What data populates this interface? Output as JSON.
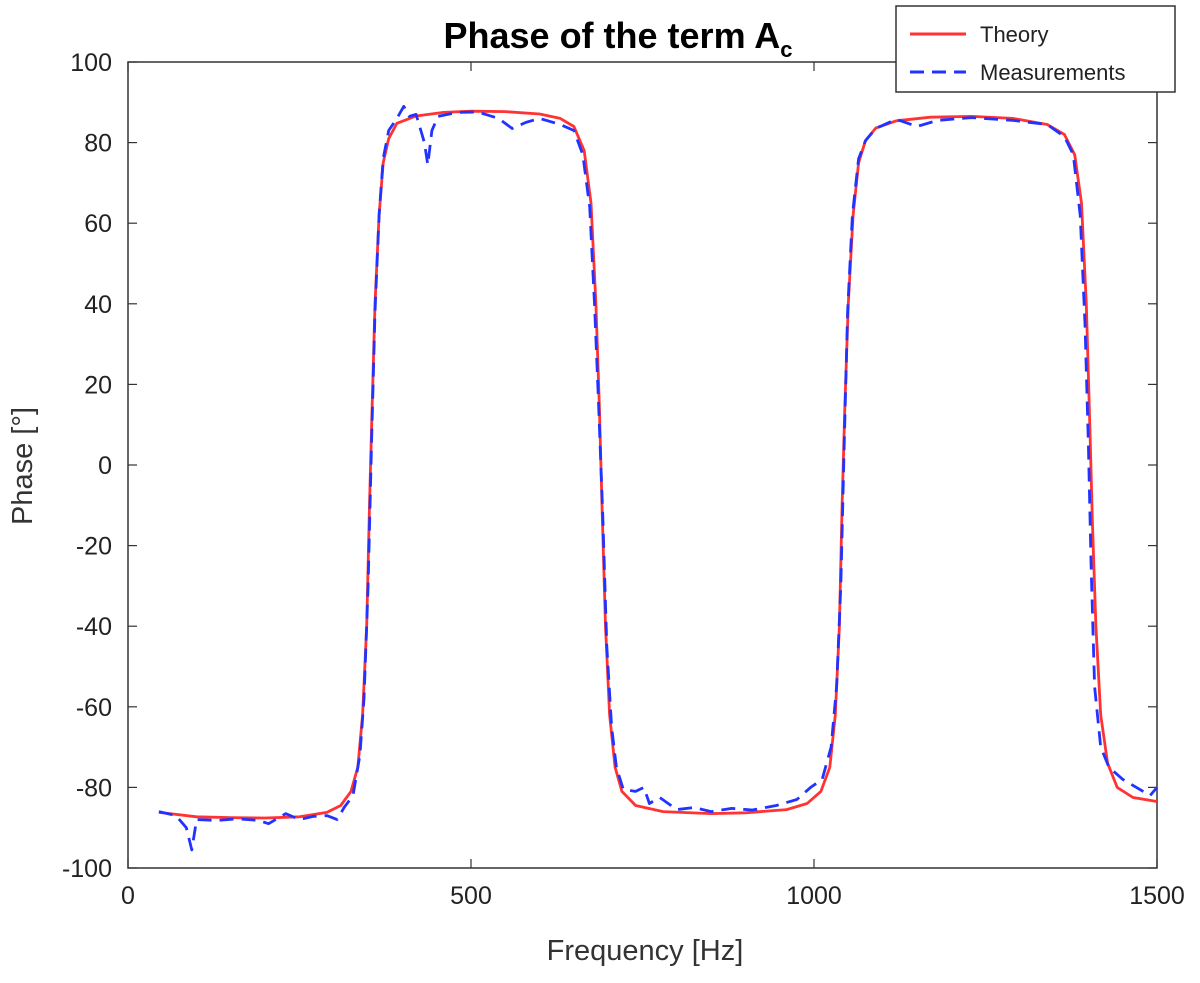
{
  "chart_data": {
    "type": "line",
    "title": "Phase of the term A",
    "title_subscript": "c",
    "xlabel": "Frequency [Hz]",
    "ylabel": "Phase [°]",
    "xlim": [
      0,
      1500
    ],
    "ylim": [
      -100,
      100
    ],
    "xticks": [
      0,
      500,
      1000,
      1500
    ],
    "yticks": [
      -100,
      -80,
      -60,
      -40,
      -20,
      0,
      20,
      40,
      60,
      80,
      100
    ],
    "grid": false,
    "legend_position": "top-right",
    "series": [
      {
        "name": "Theory",
        "color": "#ff3333",
        "style": "solid",
        "points": [
          [
            45,
            -86.2
          ],
          [
            100,
            -87.3
          ],
          [
            150,
            -87.5
          ],
          [
            200,
            -87.6
          ],
          [
            250,
            -87.3
          ],
          [
            290,
            -86.2
          ],
          [
            310,
            -84.5
          ],
          [
            325,
            -81
          ],
          [
            335,
            -75
          ],
          [
            342,
            -62
          ],
          [
            348,
            -40
          ],
          [
            352,
            -10
          ],
          [
            356,
            15
          ],
          [
            360,
            40
          ],
          [
            366,
            62
          ],
          [
            372,
            75
          ],
          [
            380,
            81
          ],
          [
            392,
            84.8
          ],
          [
            420,
            86.6
          ],
          [
            460,
            87.5
          ],
          [
            500,
            87.8
          ],
          [
            550,
            87.7
          ],
          [
            600,
            87.1
          ],
          [
            630,
            86
          ],
          [
            650,
            84
          ],
          [
            665,
            78
          ],
          [
            675,
            65
          ],
          [
            682,
            40
          ],
          [
            687,
            15
          ],
          [
            691,
            -10
          ],
          [
            696,
            -40
          ],
          [
            702,
            -62
          ],
          [
            710,
            -75
          ],
          [
            720,
            -81
          ],
          [
            740,
            -84.5
          ],
          [
            780,
            -86
          ],
          [
            850,
            -86.5
          ],
          [
            900,
            -86.3
          ],
          [
            960,
            -85.5
          ],
          [
            990,
            -84
          ],
          [
            1010,
            -81
          ],
          [
            1023,
            -75
          ],
          [
            1031,
            -62
          ],
          [
            1037,
            -40
          ],
          [
            1041,
            -10
          ],
          [
            1045,
            15
          ],
          [
            1050,
            40
          ],
          [
            1057,
            62
          ],
          [
            1065,
            75
          ],
          [
            1075,
            80.5
          ],
          [
            1090,
            83.6
          ],
          [
            1120,
            85.4
          ],
          [
            1170,
            86.3
          ],
          [
            1230,
            86.5
          ],
          [
            1290,
            86
          ],
          [
            1340,
            84.5
          ],
          [
            1365,
            82
          ],
          [
            1380,
            77
          ],
          [
            1390,
            65
          ],
          [
            1397,
            40
          ],
          [
            1402,
            10
          ],
          [
            1406,
            -15
          ],
          [
            1411,
            -40
          ],
          [
            1418,
            -62
          ],
          [
            1428,
            -74
          ],
          [
            1442,
            -80
          ],
          [
            1465,
            -82.5
          ],
          [
            1500,
            -83.5
          ]
        ]
      },
      {
        "name": "Measurements",
        "color": "#2233ff",
        "style": "dashed",
        "points": [
          [
            45,
            -86
          ],
          [
            70,
            -87
          ],
          [
            85,
            -90
          ],
          [
            93,
            -95.5
          ],
          [
            100,
            -88
          ],
          [
            130,
            -88.2
          ],
          [
            160,
            -87.8
          ],
          [
            190,
            -88.2
          ],
          [
            205,
            -89
          ],
          [
            230,
            -86.5
          ],
          [
            250,
            -88
          ],
          [
            270,
            -87.2
          ],
          [
            290,
            -87
          ],
          [
            305,
            -88
          ],
          [
            315,
            -85
          ],
          [
            328,
            -82
          ],
          [
            338,
            -72
          ],
          [
            344,
            -58
          ],
          [
            350,
            -30
          ],
          [
            355,
            5
          ],
          [
            360,
            38
          ],
          [
            366,
            62
          ],
          [
            372,
            76
          ],
          [
            380,
            83
          ],
          [
            392,
            86
          ],
          [
            402,
            89
          ],
          [
            410,
            86.5
          ],
          [
            420,
            87
          ],
          [
            432,
            80
          ],
          [
            437,
            74.5
          ],
          [
            443,
            83
          ],
          [
            452,
            86.5
          ],
          [
            480,
            87.5
          ],
          [
            510,
            87.6
          ],
          [
            540,
            86
          ],
          [
            560,
            83.5
          ],
          [
            580,
            85
          ],
          [
            600,
            86
          ],
          [
            630,
            84.5
          ],
          [
            650,
            83
          ],
          [
            663,
            77
          ],
          [
            673,
            64
          ],
          [
            680,
            40
          ],
          [
            686,
            15
          ],
          [
            692,
            -12
          ],
          [
            698,
            -45
          ],
          [
            705,
            -65
          ],
          [
            712,
            -75
          ],
          [
            722,
            -80.5
          ],
          [
            740,
            -81
          ],
          [
            752,
            -80
          ],
          [
            760,
            -84
          ],
          [
            775,
            -82.5
          ],
          [
            800,
            -85.5
          ],
          [
            825,
            -85
          ],
          [
            850,
            -86
          ],
          [
            880,
            -85.2
          ],
          [
            910,
            -85.6
          ],
          [
            945,
            -84.5
          ],
          [
            975,
            -83
          ],
          [
            995,
            -80
          ],
          [
            1012,
            -78
          ],
          [
            1025,
            -70
          ],
          [
            1033,
            -55
          ],
          [
            1039,
            -30
          ],
          [
            1044,
            5
          ],
          [
            1049,
            38
          ],
          [
            1056,
            62
          ],
          [
            1065,
            76
          ],
          [
            1075,
            80.5
          ],
          [
            1090,
            83.5
          ],
          [
            1120,
            85.8
          ],
          [
            1150,
            84
          ],
          [
            1180,
            85.5
          ],
          [
            1230,
            86.2
          ],
          [
            1290,
            85.5
          ],
          [
            1340,
            84.5
          ],
          [
            1365,
            81.5
          ],
          [
            1378,
            77
          ],
          [
            1388,
            62
          ],
          [
            1395,
            35
          ],
          [
            1400,
            5
          ],
          [
            1404,
            -25
          ],
          [
            1409,
            -55
          ],
          [
            1418,
            -70
          ],
          [
            1430,
            -75
          ],
          [
            1450,
            -78
          ],
          [
            1470,
            -80
          ],
          [
            1490,
            -82
          ],
          [
            1500,
            -80
          ]
        ]
      }
    ]
  }
}
